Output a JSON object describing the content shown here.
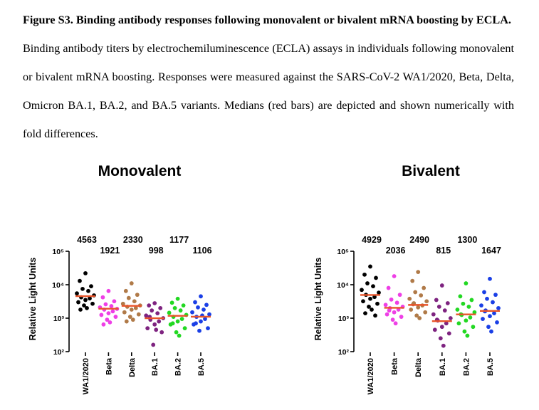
{
  "caption": {
    "title": "Figure S3. Binding antibody responses following monovalent or bivalent mRNA boosting by ECLA.",
    "body": "Binding antibody titers by electrochemiluminescence (ECLA) assays in individuals following monovalent or bivalent mRNA boosting. Responses were measured against the SARS-CoV-2 WA1/2020, Beta, Delta, Omicron BA.1, BA.2, and BA.5 variants. Medians (red bars) are depicted and shown numerically with fold differences."
  },
  "colors": {
    "WA1/2020": "#000000",
    "Beta": "#ee3fe6",
    "Delta": "#b07a48",
    "BA.1": "#7e2380",
    "BA.2": "#22d822",
    "BA.5": "#1a3fe6",
    "median": "#e8542a"
  },
  "chart_data": [
    {
      "type": "scatter",
      "title": "Monovalent",
      "ylabel": "Relative Light Units",
      "yscale": "log",
      "ylim": [
        100,
        100000
      ],
      "yticks": [
        "10²",
        "10³",
        "10⁴",
        "10⁵"
      ],
      "categories": [
        "WA1/2020",
        "Beta",
        "Delta",
        "BA.1",
        "BA.2",
        "BA.5"
      ],
      "medians": [
        4563,
        1921,
        2330,
        998,
        1177,
        1106
      ],
      "median_labels": [
        "4563",
        "1921",
        "2330",
        "998",
        "1177",
        "1106"
      ],
      "series": [
        {
          "category": "WA1/2020",
          "values": [
            22000,
            13000,
            9000,
            7500,
            6500,
            5500,
            4800,
            4200,
            3900,
            3500,
            3000,
            2700,
            2400,
            2000,
            1800
          ]
        },
        {
          "category": "Beta",
          "values": [
            6500,
            4200,
            3200,
            2600,
            2300,
            2100,
            1900,
            1800,
            1600,
            1400,
            1250,
            1100,
            900,
            750,
            650
          ]
        },
        {
          "category": "Delta",
          "values": [
            11000,
            6500,
            5000,
            4000,
            3200,
            2700,
            2400,
            2200,
            2000,
            1800,
            1500,
            1300,
            1100,
            900,
            800
          ]
        },
        {
          "category": "BA.1",
          "values": [
            2800,
            2400,
            2000,
            1700,
            1400,
            1200,
            1000,
            900,
            800,
            650,
            500,
            380,
            160,
            450,
            1100
          ]
        },
        {
          "category": "BA.2",
          "values": [
            3800,
            2900,
            2400,
            2000,
            1700,
            1450,
            1250,
            1100,
            950,
            800,
            650,
            500,
            380,
            300,
            700
          ]
        },
        {
          "category": "BA.5",
          "values": [
            4500,
            3000,
            2500,
            2100,
            1800,
            1500,
            1300,
            1100,
            950,
            800,
            650,
            500,
            420,
            1200,
            700
          ]
        }
      ]
    },
    {
      "type": "scatter",
      "title": "Bivalent",
      "ylabel": "Relative Light Units",
      "yscale": "log",
      "ylim": [
        100,
        100000
      ],
      "yticks": [
        "10²",
        "10³",
        "10⁴",
        "10⁵"
      ],
      "categories": [
        "WA1/2020",
        "Beta",
        "Delta",
        "BA.1",
        "BA.2",
        "BA.5"
      ],
      "medians": [
        4929,
        2036,
        2490,
        815,
        1300,
        1647
      ],
      "median_labels": [
        "4929",
        "2036",
        "2490",
        "815",
        "1300",
        "1647"
      ],
      "series": [
        {
          "category": "WA1/2020",
          "values": [
            35000,
            20000,
            16000,
            11000,
            9000,
            7000,
            5800,
            5000,
            4300,
            3800,
            3200,
            2700,
            2200,
            1800,
            1400,
            1200
          ]
        },
        {
          "category": "Beta",
          "values": [
            18000,
            8000,
            5000,
            3600,
            2900,
            2500,
            2200,
            2000,
            1800,
            1500,
            1300,
            1100,
            900,
            700,
            1700
          ]
        },
        {
          "category": "Delta",
          "values": [
            24000,
            13000,
            8000,
            6000,
            4800,
            3800,
            3200,
            2800,
            2400,
            2100,
            1800,
            1500,
            1200,
            1000,
            2600
          ]
        },
        {
          "category": "BA.1",
          "values": [
            9500,
            3500,
            2800,
            2200,
            1700,
            1300,
            1000,
            850,
            700,
            550,
            450,
            350,
            250,
            150,
            900
          ]
        },
        {
          "category": "BA.2",
          "values": [
            11000,
            4500,
            3500,
            2700,
            2200,
            1800,
            1500,
            1250,
            1050,
            850,
            700,
            550,
            400,
            300,
            1300
          ]
        },
        {
          "category": "BA.5",
          "values": [
            15000,
            6000,
            5000,
            3800,
            3000,
            2400,
            2000,
            1700,
            1400,
            1150,
            950,
            750,
            550,
            400,
            1600
          ]
        }
      ]
    }
  ]
}
